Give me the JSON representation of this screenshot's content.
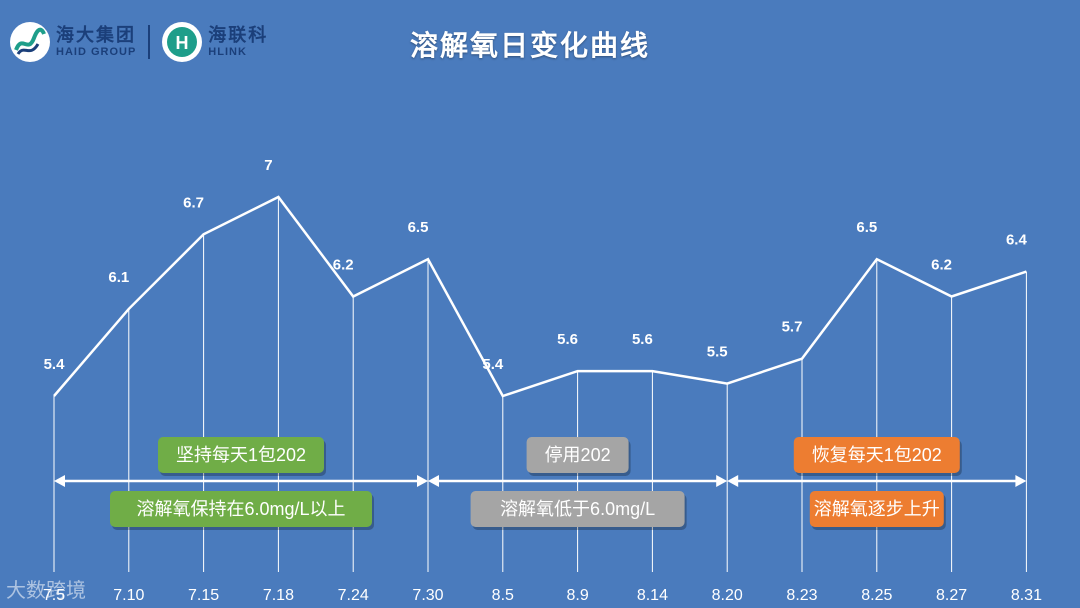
{
  "title": "溶解氧日变化曲线",
  "logos": {
    "haid": {
      "cn": "海大集团",
      "en": "HAID GROUP",
      "icon": "haid-logo-icon"
    },
    "hlink": {
      "cn": "海联科",
      "en": "HLINK",
      "icon": "hlink-logo-icon"
    }
  },
  "watermark": "大数跨境",
  "colors": {
    "background": "#4a7bbd",
    "line": "#ffffff",
    "green": "#70ad47",
    "gray": "#a5a5a5",
    "orange": "#ed7d31"
  },
  "chart_data": {
    "type": "line",
    "title": "溶解氧日变化曲线",
    "categories": [
      "7.5",
      "7.10",
      "7.15",
      "7.18",
      "7.24",
      "7.30",
      "8.5",
      "8.9",
      "8.14",
      "8.20",
      "8.23",
      "8.25",
      "8.27",
      "8.31"
    ],
    "values": [
      5.4,
      6.1,
      6.7,
      7,
      6.2,
      6.5,
      5.4,
      5.6,
      5.6,
      5.5,
      5.7,
      6.5,
      6.2,
      6.4
    ],
    "data_labels": [
      "5.4",
      "6.1",
      "6.7",
      "7",
      "6.2",
      "6.5",
      "5.4",
      "5.6",
      "5.6",
      "5.5",
      "5.7",
      "6.5",
      "6.2",
      "6.4"
    ],
    "grid": false,
    "phases": [
      {
        "label": "坚持每天1包202",
        "note": "溶解氧保持在6.0mg/L以上",
        "from": 0,
        "to": 5,
        "color": "#70ad47"
      },
      {
        "label": "停用202",
        "note": "溶解氧低于6.0mg/L",
        "from": 5,
        "to": 9,
        "color": "#a5a5a5"
      },
      {
        "label": "恢复每天1包202",
        "note": "溶解氧逐步上升",
        "from": 9,
        "to": 13,
        "color": "#ed7d31"
      }
    ]
  }
}
